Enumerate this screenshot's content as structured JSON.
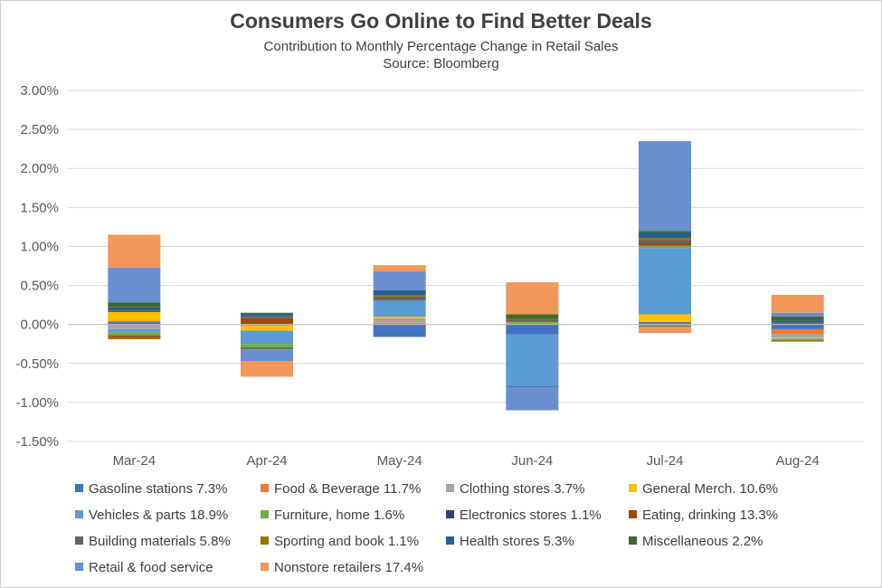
{
  "chart_data": {
    "type": "bar",
    "stacked": true,
    "title": "Consumers Go Online to Find Better Deals",
    "subtitle": "Contribution to Monthly Percentage Change in Retail Sales",
    "source": "Source: Bloomberg",
    "categories": [
      "Mar-24",
      "Apr-24",
      "May-24",
      "Jun-24",
      "Jul-24",
      "Aug-24"
    ],
    "ylim": [
      -1.5,
      3.0
    ],
    "yticks": [
      "3.00%",
      "2.50%",
      "2.00%",
      "1.50%",
      "1.00%",
      "0.50%",
      "0.00%",
      "-0.50%",
      "-1.00%",
      "-1.50%"
    ],
    "grid": true,
    "legend_position": "bottom",
    "series": [
      {
        "name": "Gasoline stations 7.3%",
        "color": "#4472c4",
        "values": [
          0.03,
          -0.01,
          -0.16,
          -0.13,
          0.03,
          -0.06
        ]
      },
      {
        "name": "Food & Beverage 11.7%",
        "color": "#ed7d31",
        "values": [
          0.02,
          0.0,
          0.02,
          0.02,
          -0.01,
          -0.06
        ]
      },
      {
        "name": "Clothing stores 3.7%",
        "color": "#a5a5a5",
        "values": [
          -0.06,
          0.0,
          0.06,
          0.0,
          -0.01,
          -0.05
        ]
      },
      {
        "name": "General Merch. 10.6%",
        "color": "#ffc000",
        "values": [
          0.11,
          -0.07,
          0.02,
          0.0,
          0.1,
          -0.01
        ]
      },
      {
        "name": "Vehicles & parts 18.9%",
        "color": "#5b9bd5",
        "values": [
          -0.04,
          -0.17,
          0.21,
          -0.66,
          0.85,
          -0.01
        ]
      },
      {
        "name": "Furniture, home 1.6%",
        "color": "#70ad47",
        "values": [
          -0.04,
          -0.05,
          0.0,
          0.01,
          0.03,
          -0.01
        ]
      },
      {
        "name": "Electronics stores 1.1%",
        "color": "#264478",
        "values": [
          0.01,
          -0.01,
          0.0,
          -0.01,
          -0.01,
          0.0
        ]
      },
      {
        "name": "Eating, drinking 13.3%",
        "color": "#9e480e",
        "values": [
          -0.02,
          0.08,
          0.01,
          0.01,
          0.03,
          -0.01
        ]
      },
      {
        "name": "Building materials 5.8%",
        "color": "#636363",
        "values": [
          0.01,
          0.03,
          0.04,
          0.02,
          0.04,
          0.03
        ]
      },
      {
        "name": "Sporting and book 1.1%",
        "color": "#997300",
        "values": [
          -0.03,
          -0.01,
          0.01,
          0.01,
          0.03,
          -0.01
        ]
      },
      {
        "name": "Health stores 5.3%",
        "color": "#255e91",
        "values": [
          0.04,
          0.03,
          0.07,
          0.0,
          0.07,
          0.02
        ]
      },
      {
        "name": "Miscellaneous 2.2%",
        "color": "#43682b",
        "values": [
          0.06,
          0.01,
          0.0,
          0.06,
          0.02,
          0.05
        ]
      },
      {
        "name": "Retail & food service",
        "color": "#698ed0",
        "values": [
          0.45,
          -0.15,
          0.24,
          -0.3,
          1.15,
          0.05
        ]
      },
      {
        "name": "Nonstore retailers 17.4%",
        "color": "#f1975a",
        "values": [
          0.42,
          -0.2,
          0.08,
          0.41,
          -0.08,
          0.23
        ]
      }
    ]
  }
}
